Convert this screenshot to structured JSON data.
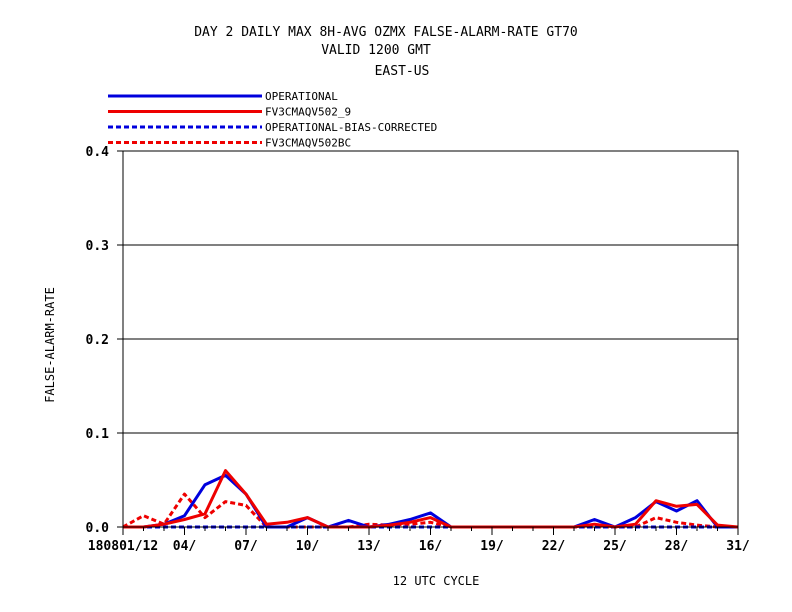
{
  "chart_data": {
    "type": "line",
    "title_lines": [
      "DAY 2 DAILY MAX   8H-AVG OZMX FALSE-ALARM-RATE GT70",
      "VALID 1200 GMT",
      "EAST-US"
    ],
    "xlabel": "12 UTC CYCLE",
    "ylabel": "FALSE-ALARM-RATE",
    "ylim": [
      0,
      0.4
    ],
    "xlim": [
      1,
      31
    ],
    "yticks": [
      0.0,
      0.1,
      0.2,
      0.3,
      0.4
    ],
    "ytick_labels": [
      "0.0",
      "0.1",
      "0.2",
      "0.3",
      "0.4"
    ],
    "xticks": [
      1,
      4,
      7,
      10,
      13,
      16,
      19,
      22,
      25,
      28,
      31
    ],
    "xtick_labels": [
      "180801/12",
      "04/",
      "07/",
      "10/",
      "13/",
      "16/",
      "19/",
      "22/",
      "25/",
      "28/",
      "31/"
    ],
    "grid": "horizontal",
    "legend_position": "top-left, above plot",
    "series": [
      {
        "name": "OPERATIONAL",
        "color": "#0000dd",
        "dash": "solid",
        "x": [
          1,
          2,
          3,
          4,
          5,
          6,
          7,
          8,
          9,
          10,
          11,
          12,
          13,
          14,
          15,
          16,
          17,
          18,
          19,
          20,
          21,
          22,
          23,
          24,
          25,
          26,
          27,
          28,
          29,
          30,
          31
        ],
        "values": [
          0,
          0,
          0.003,
          0.012,
          0.045,
          0.055,
          0.035,
          0,
          0,
          0.01,
          0,
          0.007,
          0,
          0.003,
          0.008,
          0.015,
          0,
          0,
          0,
          0,
          0,
          0,
          0,
          0.008,
          0,
          0.01,
          0.027,
          0.017,
          0.028,
          0,
          0
        ]
      },
      {
        "name": "FV3CMAQV502_9",
        "color": "#ee0000",
        "dash": "solid",
        "x": [
          1,
          2,
          3,
          4,
          5,
          6,
          7,
          8,
          9,
          10,
          11,
          12,
          13,
          14,
          15,
          16,
          17,
          18,
          19,
          20,
          21,
          22,
          23,
          24,
          25,
          26,
          27,
          28,
          29,
          30,
          31
        ],
        "values": [
          0,
          0,
          0.003,
          0.008,
          0.014,
          0.06,
          0.035,
          0.003,
          0.005,
          0.01,
          0,
          0,
          0,
          0.002,
          0.005,
          0.01,
          0,
          0,
          0,
          0,
          0,
          0,
          0,
          0.003,
          0,
          0.003,
          0.028,
          0.022,
          0.024,
          0.002,
          0
        ]
      },
      {
        "name": "OPERATIONAL-BIAS-CORRECTED",
        "color": "#0000dd",
        "dash": "dashed",
        "x": [
          1,
          2,
          3,
          4,
          5,
          6,
          7,
          8,
          9,
          10,
          11,
          12,
          13,
          14,
          15,
          16,
          17,
          18,
          19,
          20,
          21,
          22,
          23,
          24,
          25,
          26,
          27,
          28,
          29,
          30,
          31
        ],
        "values": [
          0,
          0,
          0,
          0,
          0,
          0,
          0,
          0,
          0,
          0,
          0,
          0,
          0,
          0,
          0,
          0,
          0,
          0,
          0,
          0,
          0,
          0,
          0,
          0,
          0,
          0,
          0,
          0,
          0,
          0,
          0
        ]
      },
      {
        "name": "FV3CMAQV502BC",
        "color": "#ee0000",
        "dash": "dashed",
        "x": [
          1,
          2,
          3,
          4,
          5,
          6,
          7,
          8,
          9,
          10,
          11,
          12,
          13,
          14,
          15,
          16,
          17,
          18,
          19,
          20,
          21,
          22,
          23,
          24,
          25,
          26,
          27,
          28,
          29,
          30,
          31
        ],
        "values": [
          0,
          0.012,
          0.003,
          0.035,
          0.01,
          0.027,
          0.023,
          0,
          0,
          0,
          0,
          0,
          0.003,
          0.002,
          0.003,
          0.005,
          0,
          0,
          0,
          0,
          0,
          0,
          0,
          0,
          0,
          0,
          0.01,
          0.005,
          0.002,
          0,
          0
        ]
      }
    ]
  }
}
